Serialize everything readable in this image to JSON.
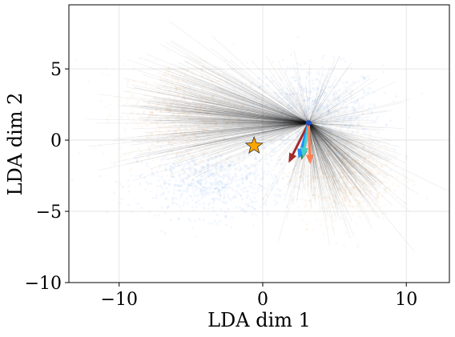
{
  "chart_data": {
    "type": "scatter",
    "xlabel": "LDA dim 1",
    "ylabel": "LDA dim 2",
    "xlim": [
      -13.5,
      13
    ],
    "ylim": [
      -10,
      9.5
    ],
    "x_ticks": [
      -10,
      0,
      10
    ],
    "x_tick_labels": [
      "−10",
      "0",
      "10"
    ],
    "y_ticks": [
      -10,
      -5,
      0,
      5
    ],
    "y_tick_labels": [
      "−10",
      "−5",
      "0",
      "5"
    ],
    "grid": true,
    "legend": "none",
    "clusters": [
      {
        "color": "#6495ED",
        "center": [
          3.5,
          2.0
        ],
        "spread": [
          2.4,
          1.6
        ],
        "role": "scatter"
      },
      {
        "color": "#6495ED",
        "center": [
          -3.5,
          -3.0
        ],
        "spread": [
          2.6,
          1.2
        ],
        "role": "scatter"
      },
      {
        "color": "#F4A460",
        "center": [
          -5.5,
          1.8
        ],
        "spread": [
          2.2,
          1.8
        ],
        "role": "scatter"
      },
      {
        "color": "#F4A460",
        "center": [
          5.5,
          -2.5
        ],
        "spread": [
          1.8,
          1.6
        ],
        "role": "scatter"
      }
    ],
    "hub": [
      3.2,
      1.2
    ],
    "star": {
      "x": -0.6,
      "y": -0.4,
      "color": "#FFA500"
    },
    "arrows": [
      {
        "from": [
          3.2,
          1.2
        ],
        "to": [
          1.8,
          -1.6
        ],
        "color": "#A52A2A"
      },
      {
        "from": [
          3.2,
          1.2
        ],
        "to": [
          2.7,
          -1.4
        ],
        "color": "#2E8B57"
      },
      {
        "from": [
          3.2,
          1.2
        ],
        "to": [
          2.5,
          -1.3
        ],
        "color": "#1E90FF"
      },
      {
        "from": [
          3.2,
          1.2
        ],
        "to": [
          2.8,
          -1.2
        ],
        "color": "#48D1CC"
      },
      {
        "from": [
          3.2,
          1.2
        ],
        "to": [
          3.3,
          -1.7
        ],
        "color": "#FF7F50"
      }
    ],
    "lines_color": "#222222"
  }
}
